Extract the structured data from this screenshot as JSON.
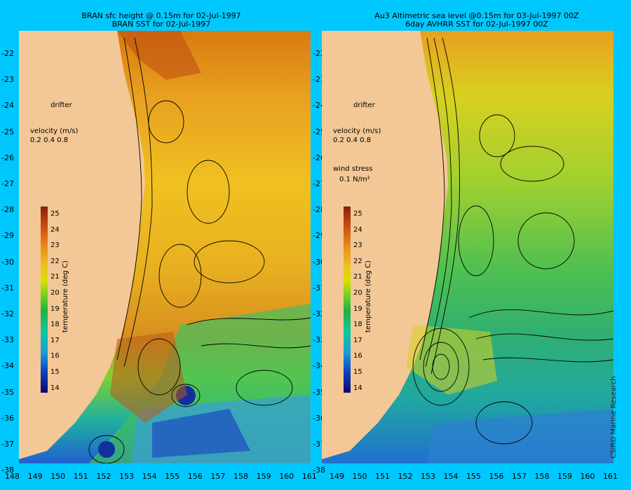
{
  "left_panel": {
    "title_line1": "BRAN sfc height @ 0.15m for 02-Jul-1997",
    "title_line2": "BRAN SST for 02-Jul-1997"
  },
  "right_panel": {
    "title_line1": "Au3 Altimetric sea level  @0.15m  for 03-Jul-1997 00Z",
    "title_line2": "6day AVHRR SST for 02-Jul-1997 00Z"
  },
  "legend": {
    "drifter": "drifter",
    "velocity_title": "velocity (m/s)",
    "velocity_scale": "0.2 0.4 0.8",
    "wind_title": "wind stress",
    "wind_value": "0.1 N/m²",
    "colorbar_unit": "temperature (deg C)",
    "colorbar_ticks": [
      "25",
      "24",
      "23",
      "22",
      "21",
      "20",
      "19",
      "18",
      "17",
      "16",
      "15",
      "14"
    ]
  },
  "axes": {
    "lat_ticks": [
      "-22",
      "-23",
      "-24",
      "-25",
      "-26",
      "-27",
      "-28",
      "-29",
      "-30",
      "-31",
      "-32",
      "-33",
      "-34",
      "-35",
      "-36",
      "-37",
      "-38"
    ],
    "left_lon_ticks": [
      "148",
      "149",
      "150",
      "151",
      "152",
      "153",
      "154",
      "155",
      "156",
      "157",
      "158",
      "159",
      "160",
      "161"
    ],
    "right_lon_ticks": [
      "149",
      "150",
      "151",
      "152",
      "153",
      "154",
      "155",
      "156",
      "157",
      "158",
      "159",
      "160",
      "161"
    ]
  },
  "credit": "CSIRO Marine Research",
  "colors": {
    "background": "#00c8ff",
    "land": "#f3c896",
    "drifter": "#ff00ff"
  }
}
